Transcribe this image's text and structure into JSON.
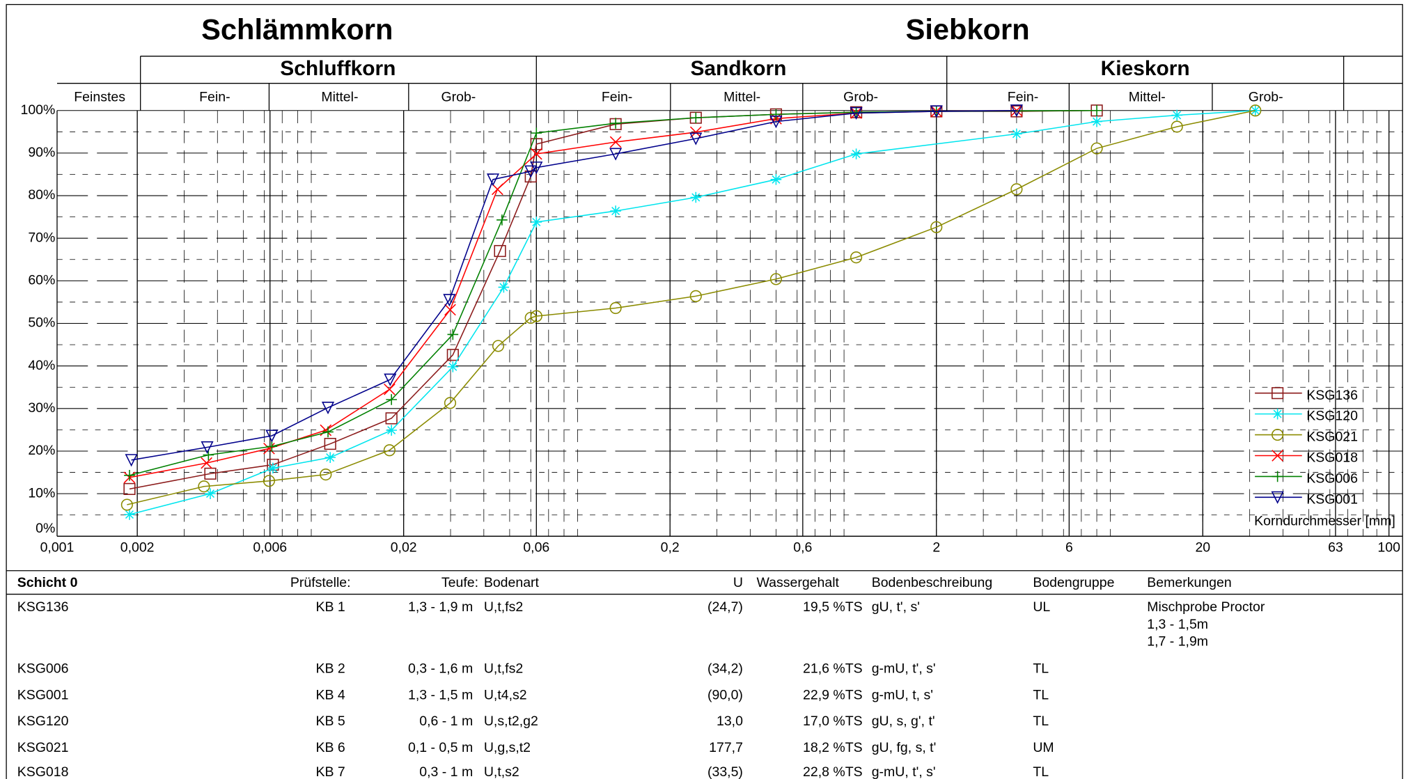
{
  "chart_data": {
    "type": "line",
    "titles": [
      "Schlämmkorn",
      "Siebkorn"
    ],
    "groups": [
      "Schluffkorn",
      "Sandkorn",
      "Kieskorn"
    ],
    "fractions": [
      "Feinstes",
      "Fein-",
      "Mittel-",
      "Grob-",
      "Fein-",
      "Mittel-",
      "Grob-",
      "Fein-",
      "Mittel-",
      "Grob-"
    ],
    "x_label": "Korndurchmesser [mm]",
    "log_x": true,
    "grid": true,
    "legend": "lower right",
    "xlim": [
      0.001,
      100
    ],
    "xticks": [
      {
        "value": 0.001,
        "label": "0,001"
      },
      {
        "value": 0.002,
        "label": "0,002"
      },
      {
        "value": 0.0063,
        "label": "0,006"
      },
      {
        "value": 0.02,
        "label": "0,02"
      },
      {
        "value": 0.063,
        "label": "0,06"
      },
      {
        "value": 0.2,
        "label": "0,2"
      },
      {
        "value": 0.63,
        "label": "0,6"
      },
      2,
      {
        "value": 6.3,
        "label": "6"
      },
      20,
      63,
      100
    ],
    "ylim": [
      0,
      100
    ],
    "yticks": [
      {
        "value": 0,
        "label": "0%"
      },
      {
        "value": 10,
        "label": "10%"
      },
      {
        "value": 20,
        "label": "20%"
      },
      {
        "value": 30,
        "label": "30%"
      },
      {
        "value": 40,
        "label": "40%"
      },
      {
        "value": 50,
        "label": "50%"
      },
      {
        "value": 60,
        "label": "60%"
      },
      {
        "value": 70,
        "label": "70%"
      },
      {
        "value": 80,
        "label": "80%"
      },
      {
        "value": 90,
        "label": "90%"
      },
      {
        "value": 100,
        "label": "100%"
      }
    ],
    "series": [
      {
        "name": "KSG136",
        "color": "#8b1a1a",
        "marker": "square",
        "x": [
          0.00187,
          0.00376,
          0.00646,
          0.0106,
          0.018,
          0.0306,
          0.046,
          0.06,
          0.063,
          0.125,
          0.25,
          0.5,
          1,
          2,
          4,
          8
        ],
        "values": [
          11.1,
          14.7,
          16.8,
          21.7,
          27.7,
          42.6,
          67.0,
          84.5,
          92.1,
          96.8,
          98.3,
          99.1,
          99.6,
          99.8,
          99.8,
          100
        ]
      },
      {
        "name": "KSG120",
        "color": "#00e5ee",
        "marker": "asterisk",
        "x": [
          0.00187,
          0.00376,
          0.00646,
          0.0106,
          0.018,
          0.0306,
          0.0475,
          0.063,
          0.125,
          0.25,
          0.5,
          1,
          4,
          8,
          16,
          31.5
        ],
        "values": [
          5.1,
          10.0,
          16.0,
          18.5,
          24.9,
          39.8,
          58.5,
          73.8,
          76.4,
          79.6,
          83.8,
          89.8,
          94.5,
          97.4,
          98.9,
          100
        ]
      },
      {
        "name": "KSG021",
        "color": "#8b8b00",
        "marker": "circle",
        "x": [
          0.00183,
          0.00356,
          0.00625,
          0.0102,
          0.0177,
          0.0299,
          0.0453,
          0.06,
          0.063,
          0.125,
          0.25,
          0.5,
          1,
          2,
          4,
          8,
          16,
          31.5
        ],
        "values": [
          7.4,
          11.7,
          13.0,
          14.5,
          20.2,
          31.3,
          44.7,
          51.3,
          51.7,
          53.6,
          56.4,
          60.4,
          65.5,
          72.6,
          81.5,
          91.1,
          96.2,
          100
        ]
      },
      {
        "name": "KSG018",
        "color": "#ff0000",
        "marker": "x",
        "x": [
          0.00187,
          0.00364,
          0.00625,
          0.0102,
          0.0177,
          0.0299,
          0.045,
          0.063,
          0.125,
          0.25,
          0.5,
          1,
          2,
          4
        ],
        "values": [
          13.8,
          17.2,
          20.6,
          24.9,
          34.5,
          53.2,
          81.5,
          89.8,
          92.6,
          94.9,
          98.1,
          99.4,
          99.8,
          100
        ]
      },
      {
        "name": "KSG006",
        "color": "#008000",
        "marker": "plus",
        "x": [
          0.00187,
          0.0037,
          0.0064,
          0.0104,
          0.018,
          0.0306,
          0.0468,
          0.063,
          0.125,
          0.25,
          0.5,
          1,
          2,
          8
        ],
        "values": [
          14.3,
          19.1,
          21.1,
          24.5,
          32.1,
          47.4,
          74.3,
          94.7,
          97.0,
          98.3,
          99.1,
          99.6,
          99.8,
          100
        ]
      },
      {
        "name": "KSG001",
        "color": "#00008b",
        "marker": "triangle-down",
        "x": [
          0.0019,
          0.00366,
          0.0064,
          0.0104,
          0.0178,
          0.0297,
          0.0433,
          0.06,
          0.063,
          0.125,
          0.25,
          0.5,
          1,
          2,
          4
        ],
        "values": [
          17.9,
          20.9,
          23.6,
          30.2,
          36.8,
          55.5,
          83.8,
          85.7,
          86.6,
          89.8,
          93.4,
          97.4,
          99.4,
          99.8,
          100
        ]
      }
    ]
  },
  "table": {
    "title": "Schicht 0",
    "columns": [
      "Prüfstelle:",
      "Teufe:",
      "Bodenart",
      "U",
      "Wassergehalt",
      "Bodenbeschreibung",
      "Bodengruppe",
      "Bemerkungen"
    ],
    "rows": [
      [
        "KSG136",
        "KB 1",
        "1,3 - 1,9 m",
        "U,t,fs2",
        "(24,7)",
        "19,5 %TS",
        "gU, t', s'",
        "UL",
        [
          "Mischprobe Proctor",
          "1,3 - 1,5m",
          "1,7 - 1,9m"
        ]
      ],
      [
        "KSG006",
        "KB 2",
        "0,3 - 1,6 m",
        "U,t,fs2",
        "(34,2)",
        "21,6 %TS",
        "g-mU, t', s'",
        "TL"
      ],
      [
        "KSG001",
        "KB 4",
        "1,3 - 1,5 m",
        "U,t4,s2",
        "(90,0)",
        "22,9 %TS",
        "g-mU, t, s'",
        "TL"
      ],
      [
        "KSG120",
        "KB 5",
        "0,6 - 1 m",
        "U,s,t2,g2",
        "13,0",
        "17,0 %TS",
        "gU, s, g', t'",
        "TL"
      ],
      [
        "KSG021",
        "KB 6",
        "0,1 - 0,5 m",
        "U,g,s,t2",
        "177,7",
        "18,2 %TS",
        "gU, fg, s, t'",
        "UM"
      ],
      [
        "KSG018",
        "KB 7",
        "0,3 - 1 m",
        "U,t,s2",
        "(33,5)",
        "22,8 %TS",
        "g-mU, t', s'",
        "TL"
      ]
    ]
  }
}
